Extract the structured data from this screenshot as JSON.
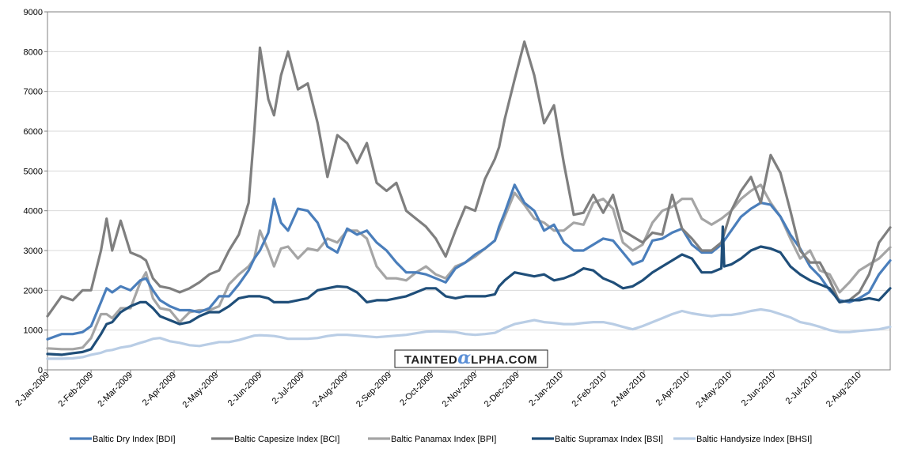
{
  "watermark": {
    "prefix": "TAINTED",
    "alpha": "α",
    "suffix": "LPHA.COM"
  },
  "chart_data": {
    "type": "line",
    "title": "",
    "xlabel": "",
    "ylabel": "",
    "ylim": [
      0,
      9000
    ],
    "yticks": [
      0,
      1000,
      2000,
      3000,
      4000,
      5000,
      6000,
      7000,
      8000,
      9000
    ],
    "xlim": [
      "2009-01-02",
      "2010-08-24"
    ],
    "xticks": [
      "2-Jan-2009",
      "2-Feb-2009",
      "2-Mar-2009",
      "2-Apr-2009",
      "2-May-2009",
      "2-Jun-2009",
      "2-Jul-2009",
      "2-Aug-2009",
      "2-Sep-2009",
      "2-Oct-2009",
      "2-Nov-2009",
      "2-Dec-2009",
      "2-Jan-2010",
      "2-Feb-2010",
      "2-Mar-2010",
      "2-Apr-2010",
      "2-May-2010",
      "2-Jun-2010",
      "2-Jul-2010",
      "2-Aug-2010"
    ],
    "grid": true,
    "legend_position": "bottom",
    "series": [
      {
        "name": "Baltic Dry Index [BDI]",
        "color": "#4a7ebb",
        "x": [
          "2009-01-02",
          "2009-01-12",
          "2009-01-20",
          "2009-01-27",
          "2009-02-02",
          "2009-02-09",
          "2009-02-13",
          "2009-02-17",
          "2009-02-23",
          "2009-03-02",
          "2009-03-09",
          "2009-03-13",
          "2009-03-18",
          "2009-03-23",
          "2009-03-30",
          "2009-04-06",
          "2009-04-13",
          "2009-04-20",
          "2009-04-27",
          "2009-05-04",
          "2009-05-11",
          "2009-05-18",
          "2009-05-25",
          "2009-05-29",
          "2009-06-02",
          "2009-06-08",
          "2009-06-12",
          "2009-06-17",
          "2009-06-22",
          "2009-06-29",
          "2009-07-06",
          "2009-07-13",
          "2009-07-20",
          "2009-07-27",
          "2009-08-03",
          "2009-08-10",
          "2009-08-17",
          "2009-08-24",
          "2009-08-31",
          "2009-09-07",
          "2009-09-14",
          "2009-09-21",
          "2009-09-28",
          "2009-10-05",
          "2009-10-12",
          "2009-10-19",
          "2009-10-26",
          "2009-11-02",
          "2009-11-09",
          "2009-11-16",
          "2009-11-19",
          "2009-11-23",
          "2009-11-30",
          "2009-12-07",
          "2009-12-14",
          "2009-12-21",
          "2009-12-28",
          "2010-01-04",
          "2010-01-11",
          "2010-01-18",
          "2010-01-25",
          "2010-02-01",
          "2010-02-08",
          "2010-02-15",
          "2010-02-22",
          "2010-03-01",
          "2010-03-08",
          "2010-03-15",
          "2010-03-22",
          "2010-03-29",
          "2010-04-05",
          "2010-04-12",
          "2010-04-19",
          "2010-04-26",
          "2010-05-03",
          "2010-05-10",
          "2010-05-17",
          "2010-05-24",
          "2010-05-31",
          "2010-06-07",
          "2010-06-14",
          "2010-06-21",
          "2010-06-28",
          "2010-07-05",
          "2010-07-12",
          "2010-07-19",
          "2010-07-26",
          "2010-08-02",
          "2010-08-09",
          "2010-08-16",
          "2010-08-24"
        ],
        "values": [
          770,
          900,
          900,
          950,
          1100,
          1700,
          2050,
          1950,
          2100,
          2000,
          2250,
          2300,
          2000,
          1750,
          1600,
          1500,
          1500,
          1450,
          1550,
          1850,
          1850,
          2150,
          2500,
          2800,
          3000,
          3450,
          4300,
          3700,
          3500,
          4050,
          4000,
          3700,
          3100,
          2950,
          3550,
          3400,
          3500,
          3200,
          3000,
          2700,
          2450,
          2450,
          2400,
          2300,
          2200,
          2550,
          2700,
          2900,
          3050,
          3250,
          3600,
          3950,
          4650,
          4200,
          4000,
          3500,
          3650,
          3200,
          3000,
          3000,
          3150,
          3300,
          3250,
          2950,
          2650,
          2750,
          3250,
          3300,
          3450,
          3550,
          3150,
          2950,
          2950,
          3150,
          3500,
          3850,
          4050,
          4200,
          4150,
          3850,
          3400,
          3050,
          2600,
          2350,
          2000,
          1750,
          1700,
          1800,
          1950,
          2400,
          2750
        ]
      },
      {
        "name": "Baltic Capesize Index [BCI]",
        "color": "#7f7f7f",
        "x": [
          "2009-01-02",
          "2009-01-12",
          "2009-01-20",
          "2009-01-27",
          "2009-02-02",
          "2009-02-09",
          "2009-02-13",
          "2009-02-17",
          "2009-02-23",
          "2009-03-02",
          "2009-03-09",
          "2009-03-13",
          "2009-03-18",
          "2009-03-23",
          "2009-03-30",
          "2009-04-06",
          "2009-04-13",
          "2009-04-20",
          "2009-04-27",
          "2009-05-04",
          "2009-05-11",
          "2009-05-18",
          "2009-05-25",
          "2009-05-29",
          "2009-06-02",
          "2009-06-08",
          "2009-06-12",
          "2009-06-17",
          "2009-06-22",
          "2009-06-29",
          "2009-07-06",
          "2009-07-13",
          "2009-07-20",
          "2009-07-27",
          "2009-08-03",
          "2009-08-10",
          "2009-08-17",
          "2009-08-24",
          "2009-08-31",
          "2009-09-07",
          "2009-09-14",
          "2009-09-21",
          "2009-09-28",
          "2009-10-05",
          "2009-10-12",
          "2009-10-19",
          "2009-10-26",
          "2009-11-02",
          "2009-11-09",
          "2009-11-16",
          "2009-11-19",
          "2009-11-23",
          "2009-11-30",
          "2009-12-07",
          "2009-12-14",
          "2009-12-21",
          "2009-12-28",
          "2010-01-04",
          "2010-01-11",
          "2010-01-18",
          "2010-01-25",
          "2010-02-01",
          "2010-02-08",
          "2010-02-15",
          "2010-02-22",
          "2010-03-01",
          "2010-03-08",
          "2010-03-15",
          "2010-03-22",
          "2010-03-29",
          "2010-04-05",
          "2010-04-12",
          "2010-04-19",
          "2010-04-26",
          "2010-05-03",
          "2010-05-10",
          "2010-05-17",
          "2010-05-24",
          "2010-05-31",
          "2010-06-07",
          "2010-06-14",
          "2010-06-21",
          "2010-06-28",
          "2010-07-05",
          "2010-07-12",
          "2010-07-19",
          "2010-07-26",
          "2010-08-02",
          "2010-08-09",
          "2010-08-16",
          "2010-08-24"
        ],
        "values": [
          1350,
          1850,
          1750,
          2000,
          2000,
          3000,
          3800,
          3000,
          3750,
          2950,
          2850,
          2750,
          2300,
          2100,
          2050,
          1950,
          2050,
          2200,
          2400,
          2500,
          3000,
          3400,
          4200,
          6000,
          8100,
          6800,
          6400,
          7400,
          8000,
          7050,
          7200,
          6200,
          4850,
          5900,
          5700,
          5200,
          5700,
          4700,
          4500,
          4700,
          4000,
          3800,
          3600,
          3300,
          2850,
          3500,
          4100,
          4000,
          4800,
          5300,
          5600,
          6300,
          7300,
          8250,
          7400,
          6200,
          6650,
          5200,
          3900,
          3950,
          4400,
          3950,
          4400,
          3500,
          3350,
          3200,
          3450,
          3400,
          4400,
          3550,
          3300,
          3000,
          3000,
          3200,
          4000,
          4500,
          4850,
          4200,
          5400,
          4950,
          4000,
          3000,
          2700,
          2700,
          2250,
          1700,
          1750,
          1950,
          2400,
          3200,
          3580
        ]
      },
      {
        "name": "Baltic Panamax Index [BPI]",
        "color": "#a5a5a5",
        "x": [
          "2009-01-02",
          "2009-01-12",
          "2009-01-20",
          "2009-01-27",
          "2009-02-02",
          "2009-02-09",
          "2009-02-13",
          "2009-02-17",
          "2009-02-23",
          "2009-03-02",
          "2009-03-09",
          "2009-03-13",
          "2009-03-18",
          "2009-03-23",
          "2009-03-30",
          "2009-04-06",
          "2009-04-13",
          "2009-04-20",
          "2009-04-27",
          "2009-05-04",
          "2009-05-11",
          "2009-05-18",
          "2009-05-25",
          "2009-05-29",
          "2009-06-02",
          "2009-06-08",
          "2009-06-12",
          "2009-06-17",
          "2009-06-22",
          "2009-06-29",
          "2009-07-06",
          "2009-07-13",
          "2009-07-20",
          "2009-07-27",
          "2009-08-03",
          "2009-08-10",
          "2009-08-17",
          "2009-08-24",
          "2009-08-31",
          "2009-09-07",
          "2009-09-14",
          "2009-09-21",
          "2009-09-28",
          "2009-10-05",
          "2009-10-12",
          "2009-10-19",
          "2009-10-26",
          "2009-11-02",
          "2009-11-09",
          "2009-11-16",
          "2009-11-19",
          "2009-11-23",
          "2009-11-30",
          "2009-12-07",
          "2009-12-14",
          "2009-12-21",
          "2009-12-28",
          "2010-01-04",
          "2010-01-11",
          "2010-01-18",
          "2010-01-25",
          "2010-02-01",
          "2010-02-08",
          "2010-02-15",
          "2010-02-22",
          "2010-03-01",
          "2010-03-08",
          "2010-03-15",
          "2010-03-22",
          "2010-03-29",
          "2010-04-05",
          "2010-04-12",
          "2010-04-19",
          "2010-04-26",
          "2010-05-03",
          "2010-05-10",
          "2010-05-17",
          "2010-05-24",
          "2010-05-31",
          "2010-06-07",
          "2010-06-14",
          "2010-06-21",
          "2010-06-28",
          "2010-07-05",
          "2010-07-12",
          "2010-07-19",
          "2010-07-26",
          "2010-08-02",
          "2010-08-09",
          "2010-08-16",
          "2010-08-24"
        ],
        "values": [
          540,
          520,
          520,
          560,
          800,
          1400,
          1400,
          1300,
          1550,
          1550,
          2200,
          2450,
          1800,
          1550,
          1500,
          1200,
          1450,
          1500,
          1500,
          1600,
          2150,
          2400,
          2600,
          2800,
          3500,
          3000,
          2600,
          3050,
          3100,
          2800,
          3050,
          3000,
          3300,
          3200,
          3500,
          3500,
          3300,
          2600,
          2300,
          2300,
          2250,
          2450,
          2600,
          2400,
          2300,
          2600,
          2700,
          2850,
          3050,
          3250,
          3500,
          3850,
          4450,
          4150,
          3800,
          3700,
          3500,
          3500,
          3700,
          3650,
          4200,
          4300,
          4050,
          3200,
          3000,
          3150,
          3700,
          4000,
          4100,
          4300,
          4300,
          3800,
          3650,
          3800,
          4000,
          4300,
          4500,
          4650,
          4200,
          3850,
          3300,
          2800,
          3000,
          2500,
          2400,
          1950,
          2200,
          2500,
          2650,
          2800,
          3080
        ]
      },
      {
        "name": "Baltic Supramax Index [BSI]",
        "color": "#1f4e79",
        "x": [
          "2009-01-02",
          "2009-01-12",
          "2009-01-20",
          "2009-01-27",
          "2009-02-02",
          "2009-02-09",
          "2009-02-13",
          "2009-02-17",
          "2009-02-23",
          "2009-03-02",
          "2009-03-09",
          "2009-03-13",
          "2009-03-18",
          "2009-03-23",
          "2009-03-30",
          "2009-04-06",
          "2009-04-13",
          "2009-04-20",
          "2009-04-27",
          "2009-05-04",
          "2009-05-11",
          "2009-05-18",
          "2009-05-25",
          "2009-05-29",
          "2009-06-02",
          "2009-06-08",
          "2009-06-12",
          "2009-06-17",
          "2009-06-22",
          "2009-06-29",
          "2009-07-06",
          "2009-07-13",
          "2009-07-20",
          "2009-07-27",
          "2009-08-03",
          "2009-08-10",
          "2009-08-17",
          "2009-08-24",
          "2009-08-31",
          "2009-09-07",
          "2009-09-14",
          "2009-09-21",
          "2009-09-28",
          "2009-10-05",
          "2009-10-12",
          "2009-10-19",
          "2009-10-26",
          "2009-11-02",
          "2009-11-09",
          "2009-11-16",
          "2009-11-19",
          "2009-11-23",
          "2009-11-30",
          "2009-12-07",
          "2009-12-14",
          "2009-12-21",
          "2009-12-28",
          "2010-01-04",
          "2010-01-11",
          "2010-01-18",
          "2010-01-25",
          "2010-02-01",
          "2010-02-08",
          "2010-02-15",
          "2010-02-22",
          "2010-03-01",
          "2010-03-08",
          "2010-03-15",
          "2010-03-22",
          "2010-03-29",
          "2010-04-05",
          "2010-04-12",
          "2010-04-19",
          "2010-04-26",
          "2010-04-27",
          "2010-04-28",
          "2010-05-03",
          "2010-05-10",
          "2010-05-17",
          "2010-05-24",
          "2010-05-31",
          "2010-06-07",
          "2010-06-14",
          "2010-06-21",
          "2010-06-28",
          "2010-07-05",
          "2010-07-12",
          "2010-07-19",
          "2010-07-26",
          "2010-08-02",
          "2010-08-09",
          "2010-08-16",
          "2010-08-24"
        ],
        "values": [
          400,
          380,
          420,
          450,
          520,
          900,
          1150,
          1200,
          1450,
          1600,
          1700,
          1700,
          1550,
          1350,
          1250,
          1150,
          1200,
          1350,
          1450,
          1450,
          1600,
          1800,
          1850,
          1850,
          1850,
          1800,
          1700,
          1700,
          1700,
          1750,
          1800,
          2000,
          2050,
          2100,
          2080,
          1950,
          1700,
          1750,
          1750,
          1800,
          1850,
          1950,
          2050,
          2050,
          1850,
          1800,
          1850,
          1850,
          1850,
          1900,
          2100,
          2250,
          2450,
          2400,
          2350,
          2400,
          2250,
          2300,
          2400,
          2550,
          2500,
          2300,
          2200,
          2050,
          2100,
          2250,
          2450,
          2600,
          2750,
          2900,
          2800,
          2450,
          2450,
          2550,
          3600,
          2600,
          2650,
          2800,
          3000,
          3100,
          3050,
          2950,
          2600,
          2400,
          2250,
          2150,
          2050,
          1700,
          1750,
          1750,
          1800,
          1750,
          2050
        ]
      },
      {
        "name": "Baltic Handysize Index [BHSI]",
        "color": "#b9cde5",
        "x": [
          "2009-01-02",
          "2009-01-12",
          "2009-01-20",
          "2009-01-27",
          "2009-02-02",
          "2009-02-09",
          "2009-02-13",
          "2009-02-17",
          "2009-02-23",
          "2009-03-02",
          "2009-03-09",
          "2009-03-13",
          "2009-03-18",
          "2009-03-23",
          "2009-03-30",
          "2009-04-06",
          "2009-04-13",
          "2009-04-20",
          "2009-04-27",
          "2009-05-04",
          "2009-05-11",
          "2009-05-18",
          "2009-05-25",
          "2009-05-29",
          "2009-06-02",
          "2009-06-08",
          "2009-06-12",
          "2009-06-17",
          "2009-06-22",
          "2009-06-29",
          "2009-07-06",
          "2009-07-13",
          "2009-07-20",
          "2009-07-27",
          "2009-08-03",
          "2009-08-10",
          "2009-08-17",
          "2009-08-24",
          "2009-08-31",
          "2009-09-07",
          "2009-09-14",
          "2009-09-21",
          "2009-09-28",
          "2009-10-05",
          "2009-10-12",
          "2009-10-19",
          "2009-10-26",
          "2009-11-02",
          "2009-11-09",
          "2009-11-16",
          "2009-11-19",
          "2009-11-23",
          "2009-11-30",
          "2009-12-07",
          "2009-12-14",
          "2009-12-21",
          "2009-12-28",
          "2010-01-04",
          "2010-01-11",
          "2010-01-18",
          "2010-01-25",
          "2010-02-01",
          "2010-02-08",
          "2010-02-15",
          "2010-02-22",
          "2010-03-01",
          "2010-03-08",
          "2010-03-15",
          "2010-03-22",
          "2010-03-29",
          "2010-04-05",
          "2010-04-12",
          "2010-04-19",
          "2010-04-26",
          "2010-05-03",
          "2010-05-10",
          "2010-05-17",
          "2010-05-24",
          "2010-05-31",
          "2010-06-07",
          "2010-06-14",
          "2010-06-21",
          "2010-06-28",
          "2010-07-05",
          "2010-07-12",
          "2010-07-19",
          "2010-07-26",
          "2010-08-02",
          "2010-08-09",
          "2010-08-16",
          "2010-08-24"
        ],
        "values": [
          280,
          280,
          290,
          320,
          380,
          430,
          480,
          500,
          560,
          600,
          680,
          720,
          780,
          800,
          720,
          680,
          620,
          600,
          650,
          700,
          700,
          750,
          820,
          860,
          870,
          860,
          850,
          820,
          780,
          780,
          780,
          800,
          850,
          880,
          880,
          860,
          840,
          820,
          840,
          860,
          880,
          920,
          960,
          970,
          960,
          950,
          900,
          880,
          900,
          930,
          980,
          1050,
          1150,
          1200,
          1250,
          1200,
          1180,
          1150,
          1150,
          1180,
          1200,
          1200,
          1150,
          1080,
          1020,
          1100,
          1200,
          1300,
          1400,
          1480,
          1420,
          1380,
          1350,
          1380,
          1380,
          1420,
          1480,
          1520,
          1480,
          1400,
          1320,
          1200,
          1150,
          1080,
          1000,
          950,
          950,
          980,
          1000,
          1020,
          1080
        ]
      }
    ]
  }
}
